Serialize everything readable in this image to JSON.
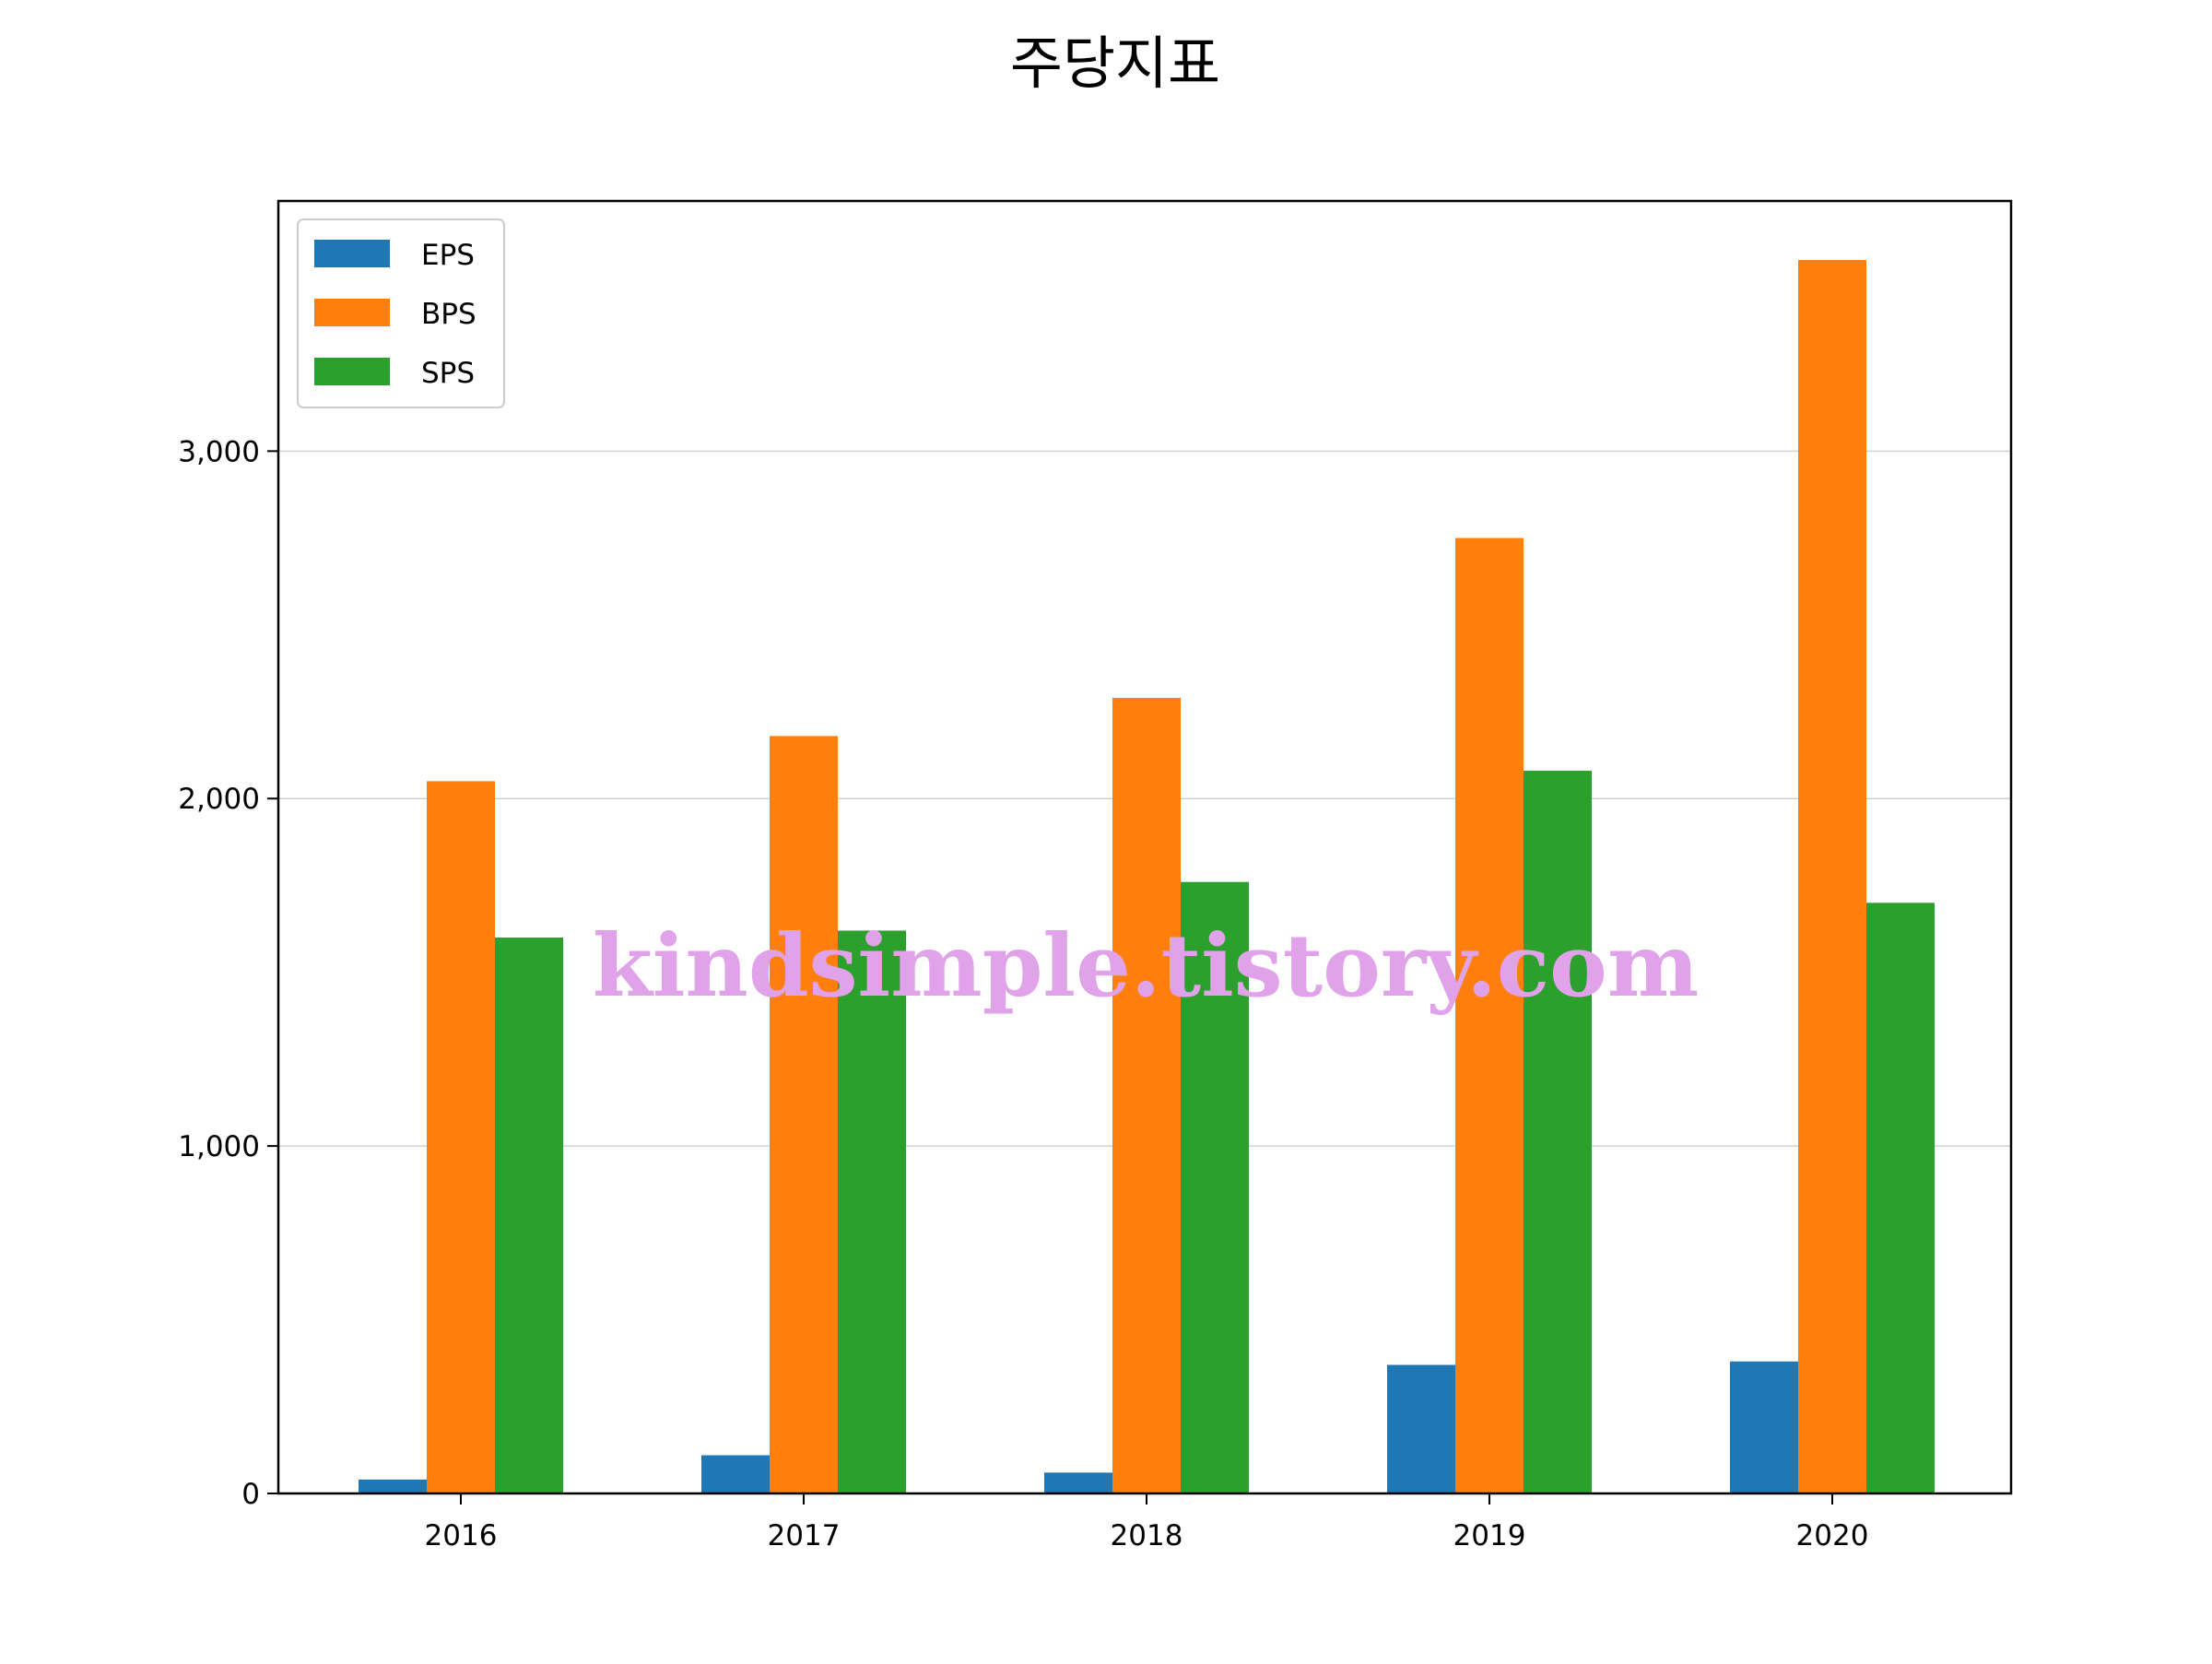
{
  "chart_data": {
    "type": "bar",
    "title": "주당지표",
    "xlabel": "",
    "ylabel": "",
    "categories": [
      "2016",
      "2017",
      "2018",
      "2019",
      "2020"
    ],
    "series": [
      {
        "name": "EPS",
        "color": "#1f77b4",
        "values": [
          40,
          110,
          60,
          370,
          380
        ]
      },
      {
        "name": "BPS",
        "color": "#ff7f0e",
        "values": [
          2050,
          2180,
          2290,
          2750,
          3550
        ]
      },
      {
        "name": "SPS",
        "color": "#2ca02c",
        "values": [
          1600,
          1620,
          1760,
          2080,
          1700
        ]
      }
    ],
    "ylim": [
      0,
      3720
    ],
    "yticks": [
      0,
      1000,
      2000,
      3000
    ],
    "ytick_labels": [
      "0",
      "1,000",
      "2,000",
      "3,000"
    ],
    "grid": "horizontal",
    "legend_position": "top-left"
  },
  "watermark": "kindsimple.tistory.com"
}
